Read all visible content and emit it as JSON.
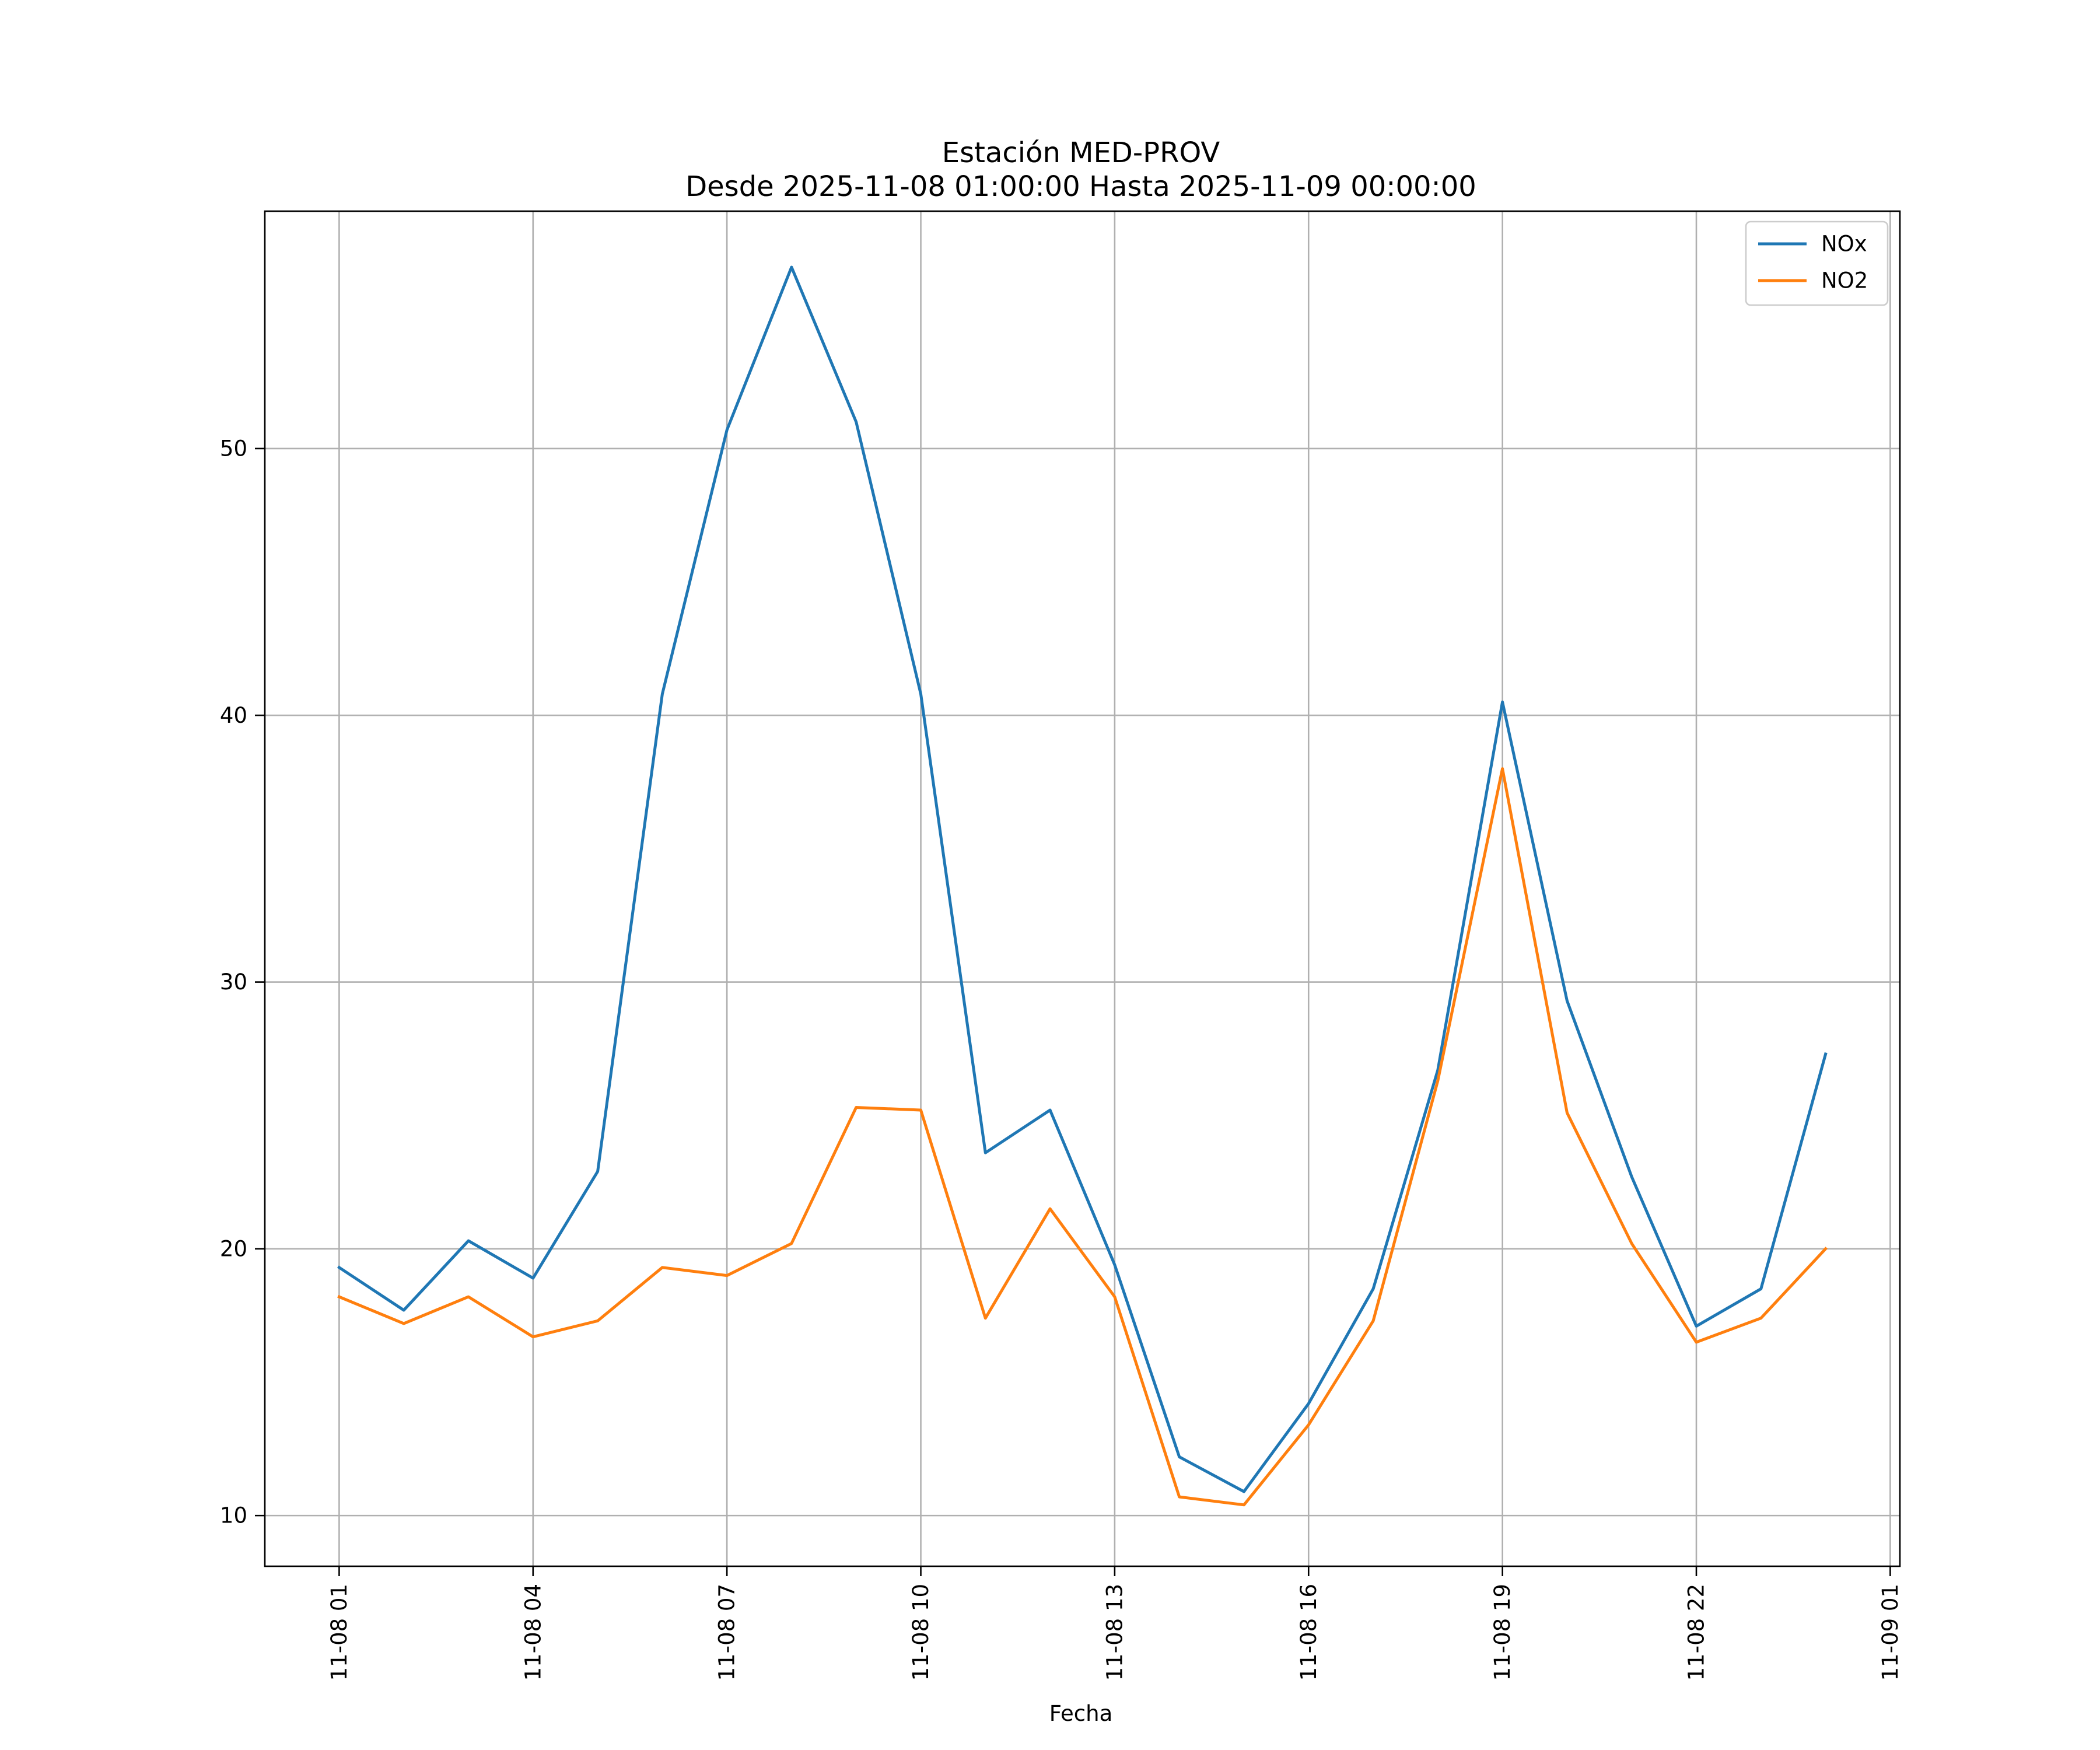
{
  "chart_data": {
    "type": "line",
    "title": "Estación MED-PROV",
    "subtitle": "Desde 2025-11-08 01:00:00 Hasta 2025-11-09 00:00:00",
    "xlabel": "Fecha",
    "ylabel": "",
    "x": [
      "2025-11-08 01:00",
      "2025-11-08 02:00",
      "2025-11-08 03:00",
      "2025-11-08 04:00",
      "2025-11-08 05:00",
      "2025-11-08 06:00",
      "2025-11-08 07:00",
      "2025-11-08 08:00",
      "2025-11-08 09:00",
      "2025-11-08 10:00",
      "2025-11-08 11:00",
      "2025-11-08 12:00",
      "2025-11-08 13:00",
      "2025-11-08 14:00",
      "2025-11-08 15:00",
      "2025-11-08 16:00",
      "2025-11-08 17:00",
      "2025-11-08 18:00",
      "2025-11-08 19:00",
      "2025-11-08 20:00",
      "2025-11-08 21:00",
      "2025-11-08 22:00",
      "2025-11-08 23:00",
      "2025-11-09 00:00"
    ],
    "series": [
      {
        "name": "NOx",
        "color": "#1f77b4",
        "values": [
          19.3,
          17.7,
          20.3,
          18.9,
          22.9,
          40.8,
          50.7,
          56.8,
          51.0,
          40.8,
          23.6,
          25.2,
          19.4,
          12.2,
          10.9,
          14.2,
          18.5,
          26.7,
          40.5,
          29.3,
          22.7,
          17.1,
          18.5,
          27.3
        ]
      },
      {
        "name": "NO2",
        "color": "#ff7f0e",
        "values": [
          18.2,
          17.2,
          18.2,
          16.7,
          17.3,
          19.3,
          19.0,
          20.2,
          25.3,
          25.2,
          17.4,
          21.5,
          18.2,
          10.7,
          10.4,
          13.4,
          17.3,
          26.3,
          38.0,
          25.1,
          20.2,
          16.5,
          17.4,
          20.0
        ]
      }
    ],
    "xticks": [
      "11-08 01",
      "11-08 04",
      "11-08 07",
      "11-08 10",
      "11-08 13",
      "11-08 16",
      "11-08 19",
      "11-08 22",
      "11-09 01"
    ],
    "xticks_hours": [
      0,
      3,
      6,
      9,
      12,
      15,
      18,
      21,
      24
    ],
    "yticks": [
      10,
      20,
      30,
      40,
      50
    ],
    "xlim": [
      "2025-11-07 23:51",
      "2025-11-09 01:09"
    ],
    "ylim": [
      8.1,
      58.9
    ],
    "grid": true,
    "legend": "top-right"
  }
}
